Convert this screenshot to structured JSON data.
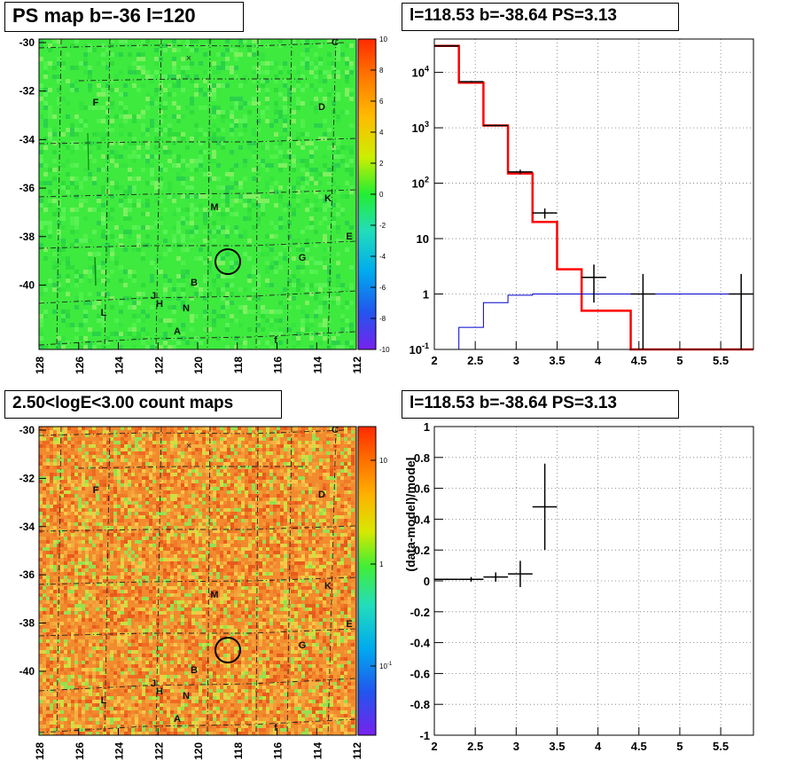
{
  "panels": {
    "tl_title": "PS map b=-36 l=120",
    "tr_title": "l=118.53 b=-38.64 PS=3.13",
    "bl_title": "2.50<logE<3.00 count maps",
    "br_title": "l=118.53 b=-38.64 PS=3.13"
  },
  "colors": {
    "data_series": "#000000",
    "model_series": "#ff0000",
    "background_series": "#0000cc",
    "ps_map_base": "#33ee33",
    "count_map_base": "#f08030",
    "circle": "#000000"
  },
  "maps": {
    "x_ticks": [
      "128",
      "126",
      "124",
      "122",
      "120",
      "118",
      "116",
      "114",
      "112"
    ],
    "y_ticks": [
      "-30",
      "-32",
      "-34",
      "-36",
      "-38",
      "-40"
    ],
    "source_labels": [
      "C",
      "F",
      "D",
      "K",
      "M",
      "E",
      "G",
      "J",
      "H",
      "B",
      "N",
      "L",
      "A",
      "f"
    ],
    "ps_colorbar_ticks": [
      "10",
      "8",
      "6",
      "4",
      "2",
      "0",
      "-2",
      "-4",
      "-6",
      "-8",
      "-10"
    ],
    "count_colorbar_ticks": [
      "10",
      "1",
      "10-1"
    ]
  },
  "chart_data": [
    {
      "type": "line",
      "panel": "top-right",
      "title": "l=118.53 b=-38.64 PS=3.13",
      "xlabel": "",
      "ylabel": "",
      "yscale": "log",
      "xlim": [
        2,
        5.9
      ],
      "ylim": [
        0.1,
        40000
      ],
      "grid": true,
      "x_ticks": [
        "2",
        "2.5",
        "3",
        "3.5",
        "4",
        "4.5",
        "5",
        "5.5"
      ],
      "y_ticks": [
        "10^-1",
        "1",
        "10",
        "10^2",
        "10^3",
        "10^4"
      ],
      "series": [
        {
          "name": "",
          "style": "step",
          "bins": [
            2.0,
            2.3,
            2.6,
            2.9,
            3.2,
            3.5,
            3.8,
            4.1,
            4.4,
            4.7,
            5.0,
            5.3,
            5.6,
            5.9
          ],
          "values": [
            30000,
            6500,
            1100,
            150,
            20,
            2.8,
            0.5,
            0.5,
            0.09,
            0.09,
            0.09,
            0.09,
            0.09
          ]
        },
        {
          "name": "",
          "style": "step",
          "bins": [
            2.0,
            2.3,
            2.6,
            2.9,
            3.2,
            3.5,
            3.8,
            4.1,
            4.4,
            4.7,
            5.0,
            5.3,
            5.6,
            5.9
          ],
          "values": [
            0.09,
            0.25,
            0.7,
            0.95,
            1.0,
            1.0,
            1.0,
            1.0,
            1.0,
            1.0,
            1.0,
            1.0,
            1.0
          ]
        },
        {
          "name": "",
          "style": "errorbars",
          "points": [
            {
              "x": 2.15,
              "xerr": 0.15,
              "y": 30000,
              "ylo": 29600,
              "yhi": 30400
            },
            {
              "x": 2.45,
              "xerr": 0.15,
              "y": 6800,
              "ylo": 6600,
              "yhi": 7000
            },
            {
              "x": 2.75,
              "xerr": 0.15,
              "y": 1100,
              "ylo": 1060,
              "yhi": 1140
            },
            {
              "x": 3.05,
              "xerr": 0.15,
              "y": 160,
              "ylo": 145,
              "yhi": 175
            },
            {
              "x": 3.35,
              "xerr": 0.15,
              "y": 29,
              "ylo": 23,
              "yhi": 35
            },
            {
              "x": 3.95,
              "xerr": 0.15,
              "y": 2,
              "ylo": 0.7,
              "yhi": 3.4
            },
            {
              "x": 4.55,
              "xerr": 0.15,
              "y": 1,
              "ylo": 0.1,
              "yhi": 2.3
            },
            {
              "x": 5.75,
              "xerr": 0.15,
              "y": 1,
              "ylo": 0.1,
              "yhi": 2.3
            }
          ]
        }
      ]
    },
    {
      "type": "scatter",
      "panel": "bottom-right",
      "title": "l=118.53 b=-38.64 PS=3.13",
      "xlabel": "",
      "ylabel": "(data-model)/model",
      "xlim": [
        2,
        5.9
      ],
      "ylim": [
        -1,
        1
      ],
      "grid": true,
      "x_ticks": [
        "2",
        "2.5",
        "3",
        "3.5",
        "4",
        "4.5",
        "5",
        "5.5"
      ],
      "y_ticks": [
        "1",
        "0.8",
        "0.6",
        "0.4",
        "0.2",
        "0",
        "-0.2",
        "-0.4",
        "-0.6",
        "-0.8",
        "-1"
      ],
      "series": [
        {
          "name": "",
          "style": "errorbars",
          "points": [
            {
              "x": 2.15,
              "xerr": 0.15,
              "y": 0.01,
              "ylo": 0.005,
              "yhi": 0.015
            },
            {
              "x": 2.45,
              "xerr": 0.15,
              "y": 0.01,
              "ylo": -0.005,
              "yhi": 0.025
            },
            {
              "x": 2.75,
              "xerr": 0.15,
              "y": 0.025,
              "ylo": -0.005,
              "yhi": 0.055
            },
            {
              "x": 3.05,
              "xerr": 0.15,
              "y": 0.045,
              "ylo": -0.04,
              "yhi": 0.13
            },
            {
              "x": 3.35,
              "xerr": 0.15,
              "y": 0.48,
              "ylo": 0.2,
              "yhi": 0.76
            }
          ]
        }
      ]
    }
  ]
}
